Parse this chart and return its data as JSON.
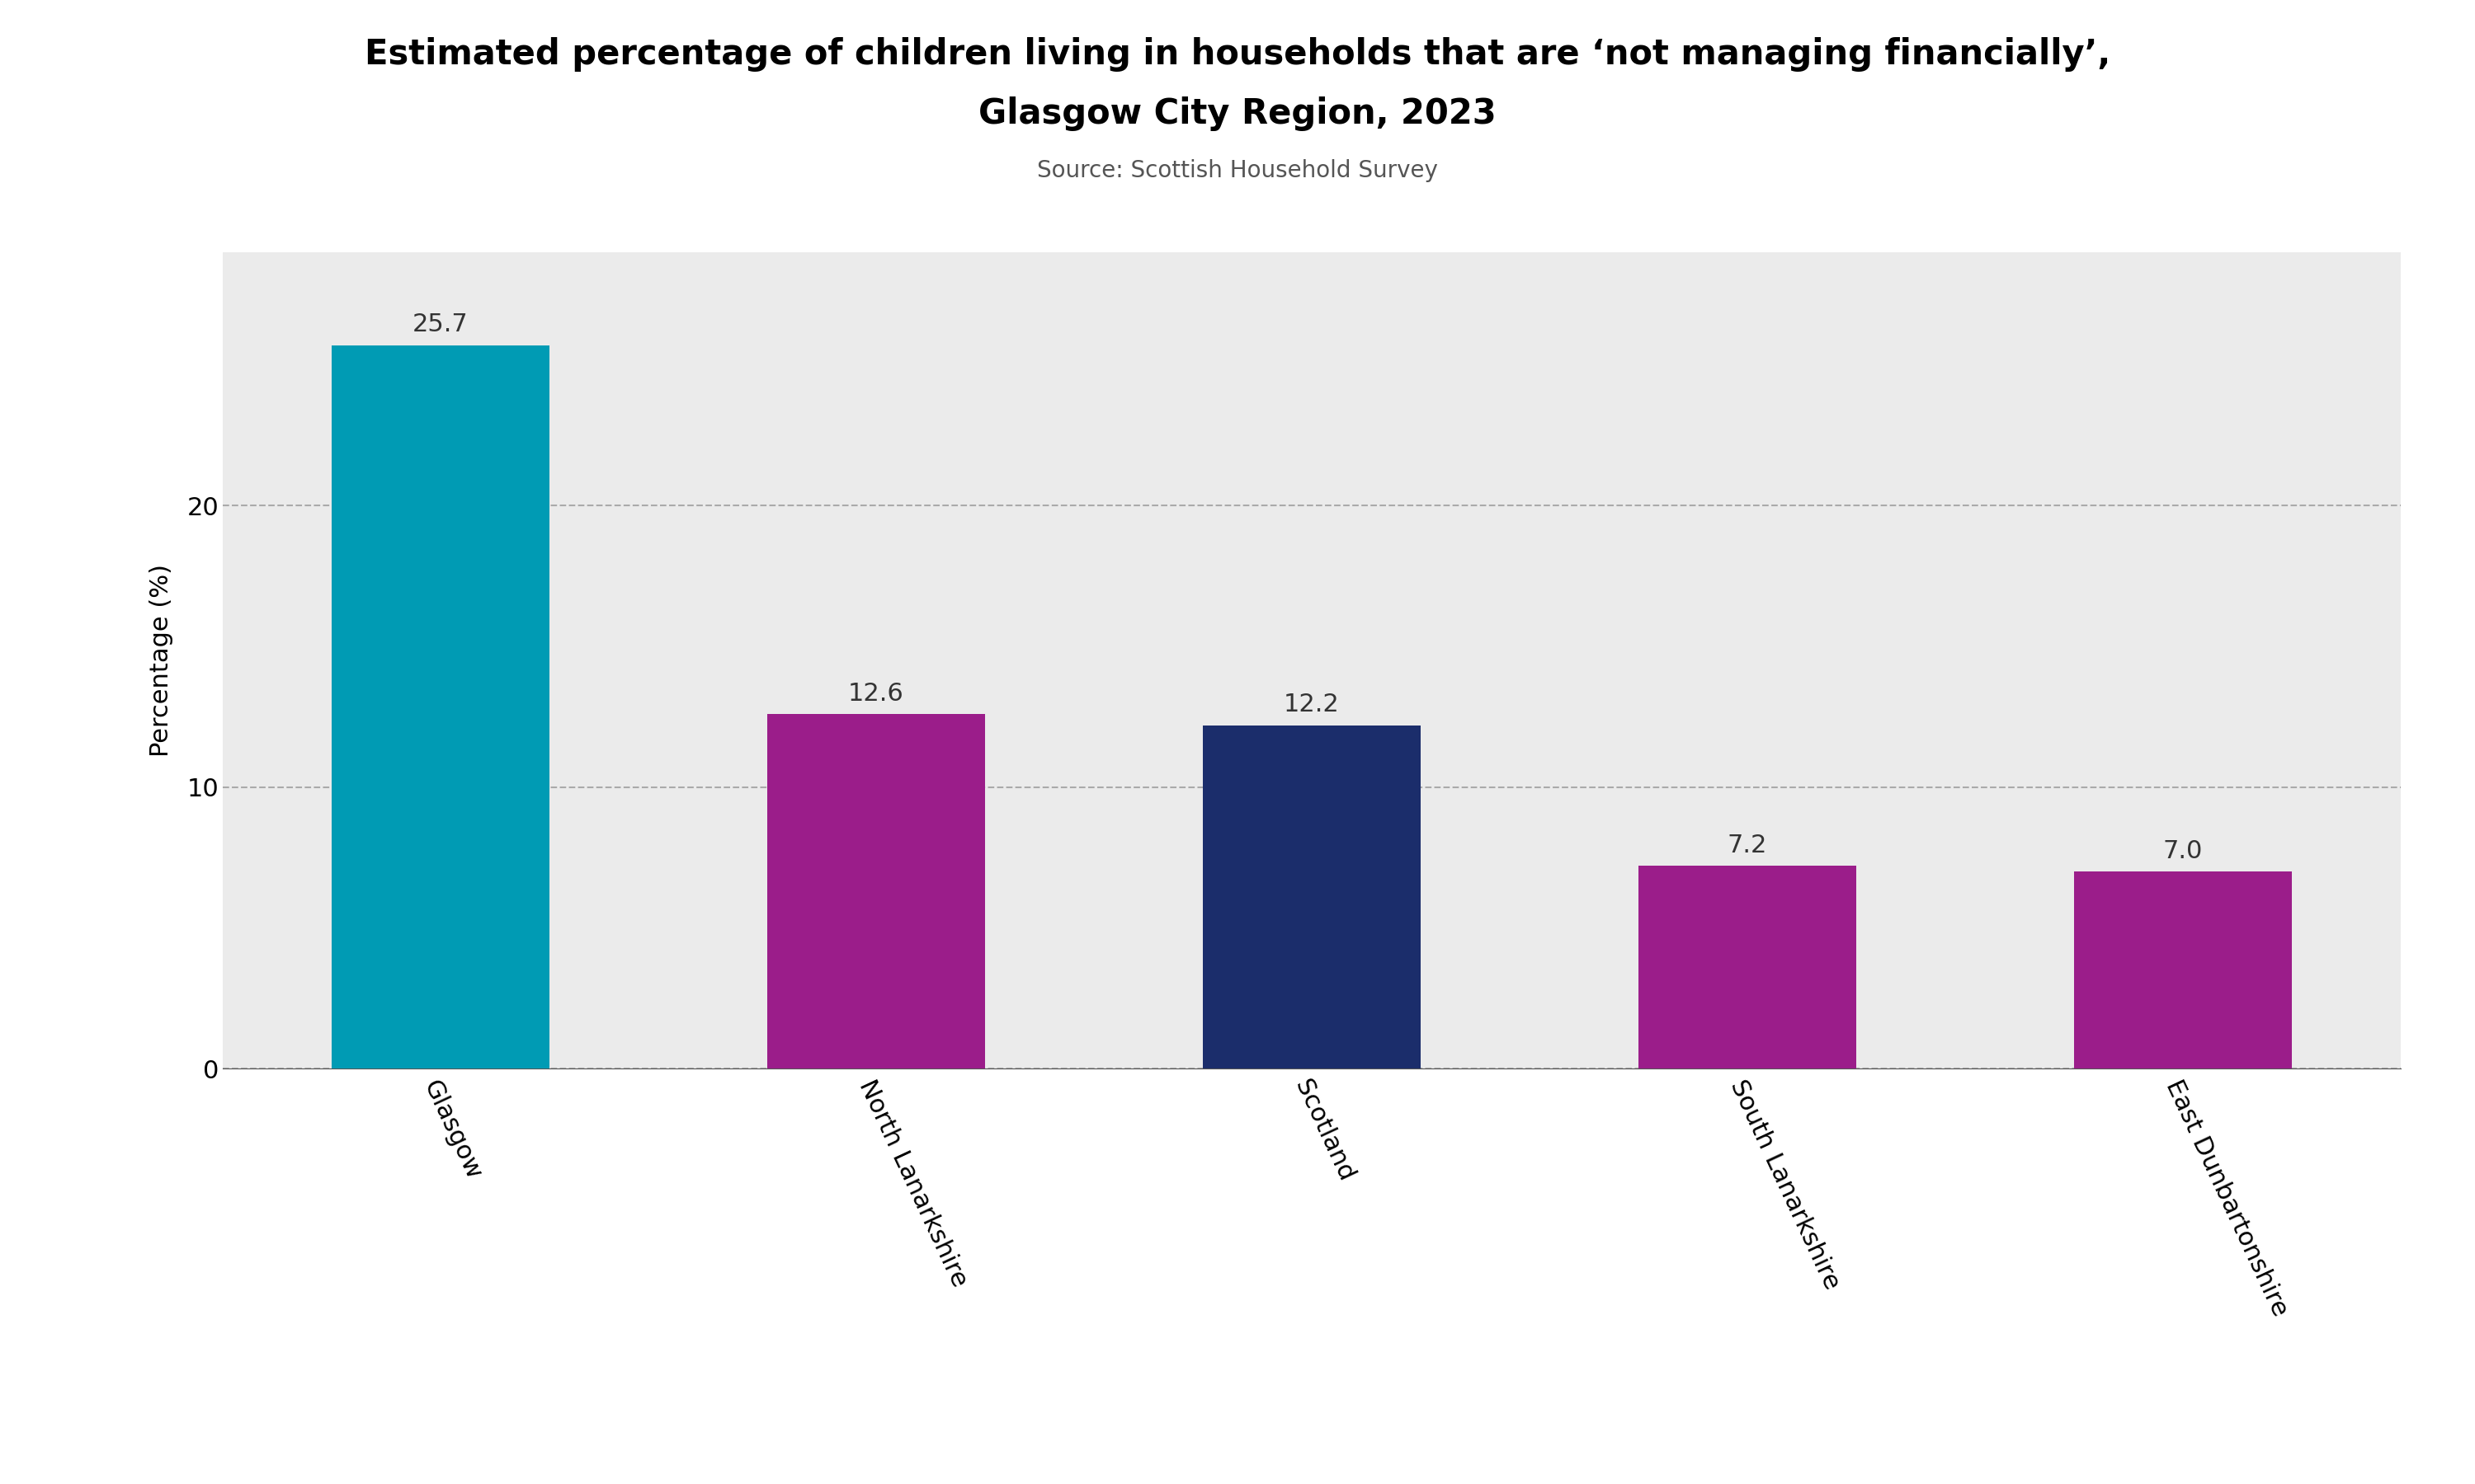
{
  "categories": [
    "Glasgow",
    "North Lanarkshire",
    "Scotland",
    "South Lanarkshire",
    "East Dunbartonshire"
  ],
  "values": [
    25.7,
    12.6,
    12.2,
    7.2,
    7.0
  ],
  "bar_colors": [
    "#009BB4",
    "#9B1D8A",
    "#1B2D6B",
    "#9B1D8A",
    "#9B1D8A"
  ],
  "title_line1": "Estimated percentage of children living in households that are ‘not managing financially’,",
  "title_line2": "Glasgow City Region, 2023",
  "subtitle": "Source: Scottish Household Survey",
  "ylabel": "Percentage (%)",
  "ylim": [
    0,
    29
  ],
  "yticks": [
    0,
    10,
    20
  ],
  "background_color": "#ebebeb",
  "outer_background": "#ffffff",
  "gridline_color": "#aaaaaa",
  "title_fontsize": 30,
  "subtitle_fontsize": 20,
  "label_fontsize": 22,
  "tick_fontsize": 22,
  "value_label_fontsize": 22,
  "ylabel_fontsize": 22
}
